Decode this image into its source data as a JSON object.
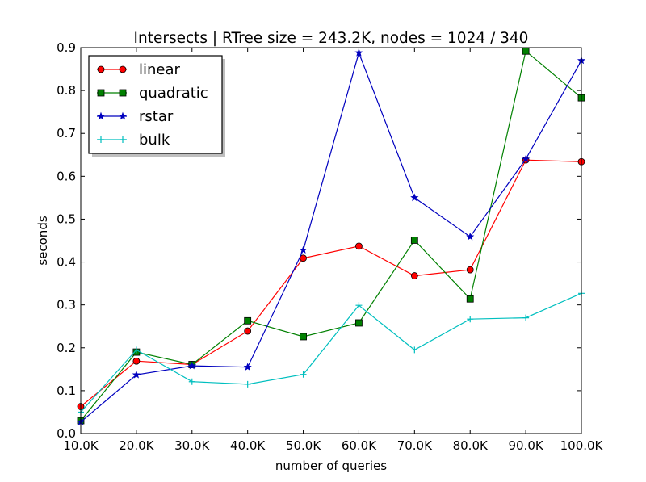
{
  "chart_data": {
    "type": "line",
    "title": "Intersects | RTree size = 243.2K, nodes = 1024 / 340",
    "xlabel": "number of queries",
    "ylabel": "seconds",
    "categories": [
      "10.0K",
      "20.0K",
      "30.0K",
      "40.0K",
      "50.0K",
      "60.0K",
      "70.0K",
      "80.0K",
      "90.0K",
      "100.0K"
    ],
    "yticks": [
      "0.0",
      "0.1",
      "0.2",
      "0.3",
      "0.4",
      "0.5",
      "0.6",
      "0.7",
      "0.8",
      "0.9"
    ],
    "ylim": [
      0,
      0.9
    ],
    "legend_position": "top-left",
    "series": [
      {
        "name": "linear",
        "color": "#ff0000",
        "marker": "circle",
        "values": [
          0.063,
          0.169,
          0.161,
          0.239,
          0.409,
          0.437,
          0.368,
          0.382,
          0.638,
          0.634
        ]
      },
      {
        "name": "quadratic",
        "color": "#008000",
        "marker": "square",
        "values": [
          0.03,
          0.19,
          0.161,
          0.263,
          0.226,
          0.258,
          0.451,
          0.314,
          0.892,
          0.783
        ]
      },
      {
        "name": "rstar",
        "color": "#0000bf",
        "marker": "star",
        "values": [
          0.027,
          0.137,
          0.158,
          0.155,
          0.428,
          0.888,
          0.55,
          0.459,
          0.64,
          0.87
        ]
      },
      {
        "name": "bulk",
        "color": "#00bfbf",
        "marker": "plus",
        "values": [
          0.05,
          0.195,
          0.121,
          0.115,
          0.138,
          0.299,
          0.195,
          0.267,
          0.27,
          0.327
        ]
      }
    ]
  }
}
